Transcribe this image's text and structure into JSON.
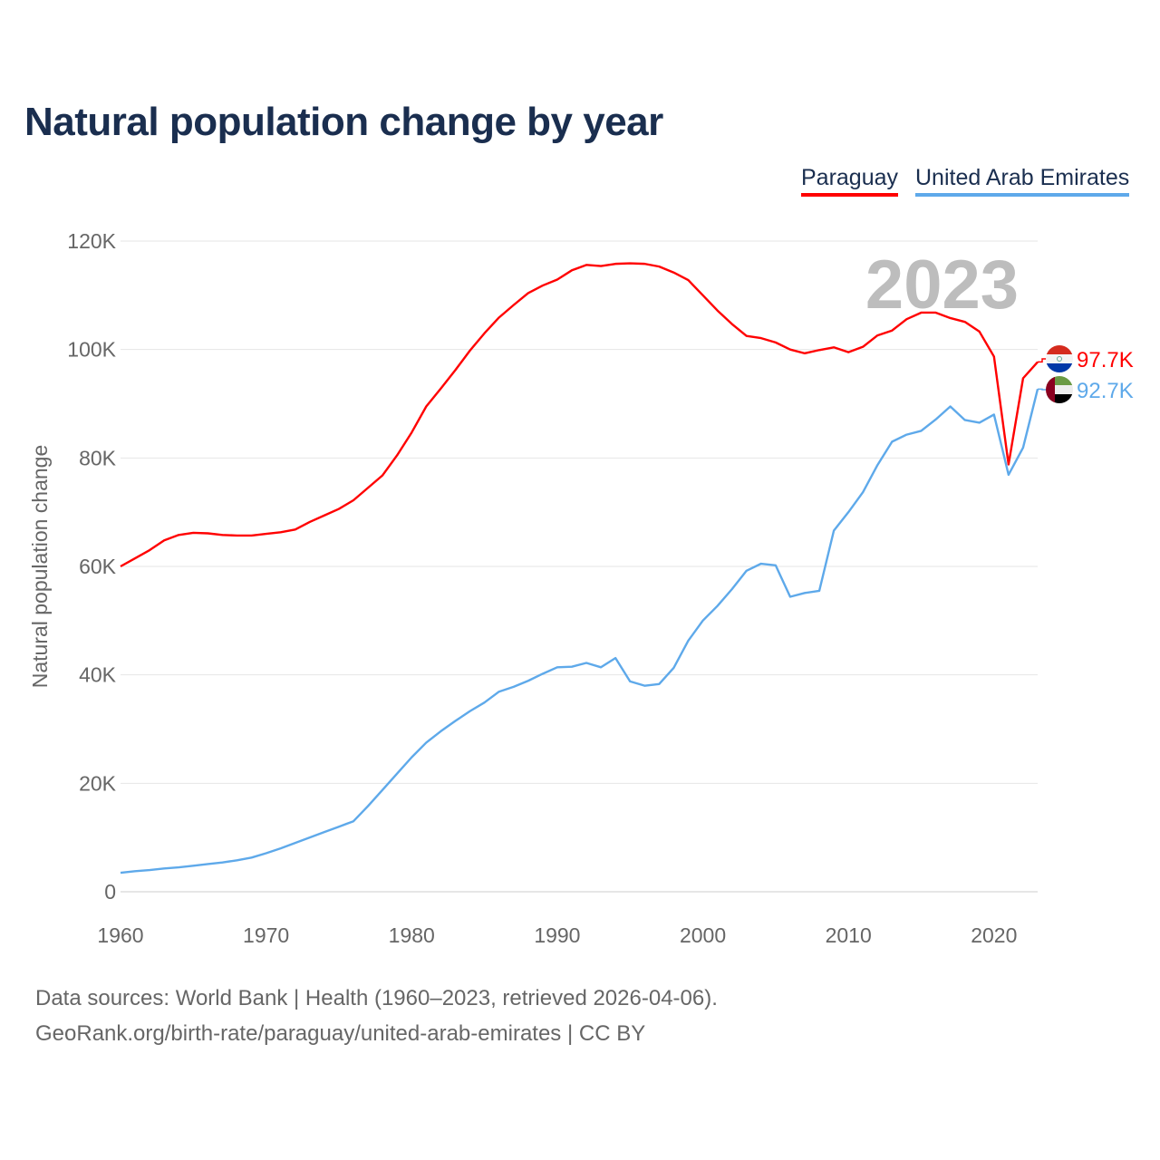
{
  "chart_data": {
    "type": "line",
    "title": "Natural population change by year",
    "xlabel": "",
    "ylabel": "Natural population change",
    "xlim": [
      1960,
      2023
    ],
    "ylim": [
      0,
      120000
    ],
    "x_ticks": [
      "1960",
      "1970",
      "1980",
      "1990",
      "2000",
      "2010",
      "2020"
    ],
    "y_ticks": [
      "0",
      "20K",
      "40K",
      "60K",
      "80K",
      "100K",
      "120K"
    ],
    "grid": true,
    "legend_placement": "top-right",
    "year_label": "2023",
    "x": [
      1960,
      1961,
      1962,
      1963,
      1964,
      1965,
      1966,
      1967,
      1968,
      1969,
      1970,
      1971,
      1972,
      1973,
      1974,
      1975,
      1976,
      1977,
      1978,
      1979,
      1980,
      1981,
      1982,
      1983,
      1984,
      1985,
      1986,
      1987,
      1988,
      1989,
      1990,
      1991,
      1992,
      1993,
      1994,
      1995,
      1996,
      1997,
      1998,
      1999,
      2000,
      2001,
      2002,
      2003,
      2004,
      2005,
      2006,
      2007,
      2008,
      2009,
      2010,
      2011,
      2012,
      2013,
      2014,
      2015,
      2016,
      2017,
      2018,
      2019,
      2020,
      2021,
      2022,
      2023
    ],
    "series": [
      {
        "name": "Paraguay",
        "color": "#ff0000",
        "end_label": "97.7K",
        "flag": "paraguay-flag",
        "values": [
          60.0,
          61.5,
          63.0,
          64.8,
          65.8,
          66.2,
          66.1,
          65.8,
          65.7,
          65.7,
          66.0,
          66.3,
          66.8,
          68.2,
          69.4,
          70.6,
          72.2,
          74.5,
          76.8,
          80.5,
          84.7,
          89.5,
          92.8,
          96.2,
          99.8,
          103.0,
          105.9,
          108.2,
          110.4,
          111.8,
          112.9,
          114.6,
          115.6,
          115.4,
          115.8,
          115.9,
          115.8,
          115.3,
          114.2,
          112.8,
          110.0,
          107.2,
          104.7,
          102.5,
          102.1,
          101.3,
          100.0,
          99.3,
          99.9,
          100.4,
          99.5,
          100.5,
          102.6,
          103.5,
          105.6,
          106.8,
          106.8,
          105.8,
          105.1,
          103.3,
          98.7,
          78.8,
          94.7,
          97.7
        ]
      },
      {
        "name": "United Arab Emirates",
        "color": "#5ea9ea",
        "end_label": "92.7K",
        "flag": "uae-flag",
        "values": [
          3.5,
          3.8,
          4.0,
          4.3,
          4.5,
          4.8,
          5.1,
          5.4,
          5.8,
          6.3,
          7.1,
          8.0,
          9.0,
          10.0,
          11.0,
          12.0,
          13.0,
          15.8,
          18.8,
          21.8,
          24.8,
          27.5,
          29.6,
          31.5,
          33.3,
          34.9,
          36.9,
          37.8,
          38.9,
          40.2,
          41.4,
          41.5,
          42.2,
          41.4,
          43.1,
          38.8,
          38.0,
          38.3,
          41.3,
          46.3,
          50.0,
          52.7,
          55.8,
          59.2,
          60.5,
          60.2,
          54.4,
          55.1,
          55.5,
          66.6,
          70.0,
          73.7,
          78.7,
          83.0,
          84.3,
          85.0,
          87.1,
          89.5,
          87.0,
          86.5,
          88.0,
          76.9,
          81.9,
          92.7
        ]
      }
    ],
    "value_unit": "thousands"
  },
  "footer": {
    "line1": "Data sources: World Bank | Health (1960–2023, retrieved 2026-04-06).",
    "line2": "GeoRank.org/birth-rate/paraguay/united-arab-emirates | CC BY"
  }
}
